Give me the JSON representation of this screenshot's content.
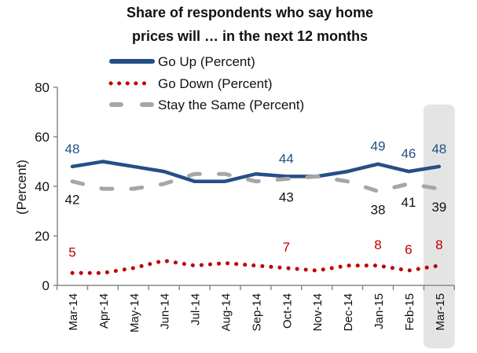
{
  "chart_data": {
    "type": "line",
    "title": "Share of respondents who say home prices will … in the next 12 months",
    "title_lines": [
      "Share of respondents who say home",
      "prices will … in the next 12 months"
    ],
    "xlabel": "",
    "ylabel": "(Percent)",
    "ylim": [
      0,
      80
    ],
    "yticks": [
      0,
      20,
      40,
      60,
      80
    ],
    "grid": false,
    "legend_position": "top-center",
    "highlight_category": "Mar-15",
    "categories": [
      "Mar-14",
      "Apr-14",
      "May-14",
      "Jun-14",
      "Jul-14",
      "Aug-14",
      "Sep-14",
      "Oct-14",
      "Nov-14",
      "Dec-14",
      "Jan-15",
      "Feb-15",
      "Mar-15"
    ],
    "series": [
      {
        "name": "Go Up (Percent)",
        "color": "#254f86",
        "style": "solid",
        "values": [
          48,
          50,
          48,
          46,
          42,
          42,
          45,
          44,
          44,
          46,
          49,
          46,
          48
        ],
        "labels": [
          {
            "category": "Mar-14",
            "text": "48"
          },
          {
            "category": "Oct-14",
            "text": "44"
          },
          {
            "category": "Jan-15",
            "text": "49"
          },
          {
            "category": "Feb-15",
            "text": "46"
          },
          {
            "category": "Mar-15",
            "text": "48"
          }
        ]
      },
      {
        "name": "Go Down (Percent)",
        "color": "#c00000",
        "style": "dotted",
        "values": [
          5,
          5,
          7,
          10,
          8,
          9,
          8,
          7,
          6,
          8,
          8,
          6,
          8
        ],
        "labels": [
          {
            "category": "Mar-14",
            "text": "5"
          },
          {
            "category": "Oct-14",
            "text": "7"
          },
          {
            "category": "Jan-15",
            "text": "8"
          },
          {
            "category": "Feb-15",
            "text": "6"
          },
          {
            "category": "Mar-15",
            "text": "8"
          }
        ]
      },
      {
        "name": "Stay the Same (Percent)",
        "color": "#a6a6a6",
        "style": "dashed",
        "values": [
          42,
          39,
          39,
          41,
          45,
          45,
          42,
          43,
          44,
          42,
          38,
          41,
          39
        ],
        "labels": [
          {
            "category": "Mar-14",
            "text": "42"
          },
          {
            "category": "Oct-14",
            "text": "43"
          },
          {
            "category": "Jan-15",
            "text": "38"
          },
          {
            "category": "Feb-15",
            "text": "41"
          },
          {
            "category": "Mar-15",
            "text": "39"
          }
        ]
      }
    ],
    "label_color_stay": "#111111"
  }
}
